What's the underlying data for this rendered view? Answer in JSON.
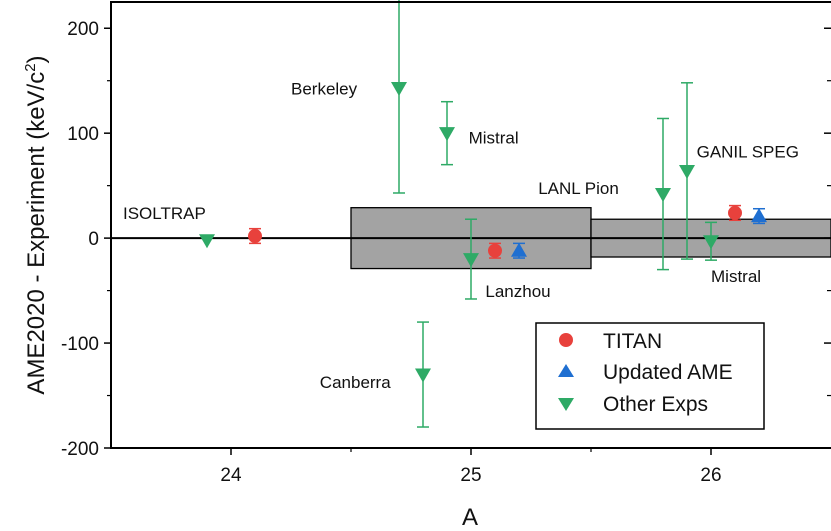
{
  "chart_data": {
    "type": "scatter",
    "xlabel": "A",
    "ylabel": "AME2020 - Experiment (keV/c²)",
    "xlim": [
      23.5,
      26.5
    ],
    "ylim": [
      -200,
      225
    ],
    "x_ticks": [
      {
        "value": 24,
        "label": "24"
      },
      {
        "value": 25,
        "label": "25"
      },
      {
        "value": 26,
        "label": "26"
      }
    ],
    "y_ticks": [
      {
        "value": 200,
        "label": "200"
      },
      {
        "value": 100,
        "label": "100"
      },
      {
        "value": 0,
        "label": "0"
      },
      {
        "value": -100,
        "label": "-100"
      },
      {
        "value": -200,
        "label": "-200"
      }
    ],
    "zero_line": true,
    "uncertainty_band": [
      {
        "x_from": 24.5,
        "x_to": 25.5,
        "half_width": 29
      },
      {
        "x_from": 25.5,
        "x_to": 26.5,
        "half_width": 18
      }
    ],
    "colors": {
      "TITAN": "#e8413c",
      "Updated AME": "#1f6fd1",
      "Other Exps": "#2eaa66",
      "band": "#a3a3a3"
    },
    "legend_position": "bottom-right",
    "series": [
      {
        "name": "TITAN",
        "marker": "circle",
        "points": [
          {
            "x": 24.1,
            "y": 2,
            "err": 7
          },
          {
            "x": 25.1,
            "y": -12,
            "err": 7
          },
          {
            "x": 26.1,
            "y": 24,
            "err": 7
          }
        ]
      },
      {
        "name": "Updated AME",
        "marker": "triangle-up",
        "points": [
          {
            "x": 25.2,
            "y": -12,
            "err": 7
          },
          {
            "x": 26.2,
            "y": 21,
            "err": 7
          }
        ]
      },
      {
        "name": "Other Exps",
        "marker": "triangle-down",
        "points": [
          {
            "x": 23.9,
            "y": -2,
            "err": 0
          },
          {
            "x": 24.7,
            "y": 143,
            "err": 100
          },
          {
            "x": 24.8,
            "y": -130,
            "err": 50
          },
          {
            "x": 24.9,
            "y": 100,
            "err": 30
          },
          {
            "x": 25.0,
            "y": -20,
            "err": 38
          },
          {
            "x": 25.8,
            "y": 42,
            "err": 72
          },
          {
            "x": 25.9,
            "y": 64,
            "err": 84
          },
          {
            "x": 26.0,
            "y": -3,
            "err": 18
          }
        ]
      }
    ],
    "annotations": [
      {
        "text": "ISOLTRAP",
        "x": 23.55,
        "y": 18
      },
      {
        "text": "Berkeley",
        "x": 24.25,
        "y": 137
      },
      {
        "text": "Mistral",
        "x": 24.99,
        "y": 90
      },
      {
        "text": "Canberra",
        "x": 24.37,
        "y": -143
      },
      {
        "text": "Lanzhou",
        "x": 25.06,
        "y": -56
      },
      {
        "text": "LANL Pion",
        "x": 25.28,
        "y": 42
      },
      {
        "text": "GANIL SPEG",
        "x": 25.94,
        "y": 77
      },
      {
        "text": "Mistral",
        "x": 26.0,
        "y": -42
      }
    ]
  }
}
